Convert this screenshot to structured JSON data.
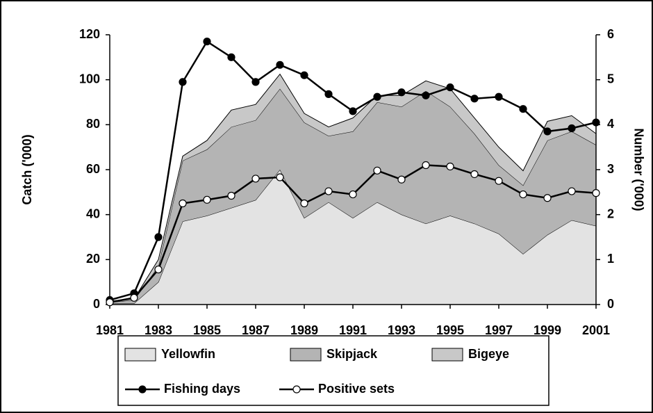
{
  "chart_data": {
    "type": "stacked-area-line",
    "y_label": "Catch ('000)",
    "y2_label": "Number ('000)",
    "x": [
      1981,
      1982,
      1983,
      1984,
      1985,
      1986,
      1987,
      1988,
      1989,
      1990,
      1991,
      1992,
      1993,
      1994,
      1995,
      1996,
      1997,
      1998,
      1999,
      2000,
      2001
    ],
    "xlim": [
      1981,
      2001
    ],
    "xticks": [
      1981,
      1983,
      1985,
      1987,
      1989,
      1991,
      1993,
      1995,
      1997,
      1999,
      2001
    ],
    "ylim": [
      0,
      120
    ],
    "yticks": [
      0,
      20,
      40,
      60,
      80,
      100,
      120
    ],
    "y2lim": [
      0,
      6
    ],
    "y2ticks": [
      0,
      1,
      2,
      3,
      4,
      5,
      6
    ],
    "grid": false,
    "series": [
      {
        "name": "Yellowfin",
        "kind": "area",
        "color": "#e3e3e3",
        "values": [
          0.5,
          0.5,
          10,
          37,
          39.5,
          43,
          46.5,
          60,
          38.5,
          45.5,
          38.5,
          45.5,
          40,
          36,
          39.5,
          36,
          31.5,
          22.5,
          31,
          37.5,
          35
        ]
      },
      {
        "name": "Skipjack",
        "kind": "area",
        "color": "#b4b4b4",
        "values": [
          0.5,
          1.5,
          7,
          27,
          29.5,
          36,
          35.5,
          36,
          42.5,
          29.5,
          38.5,
          44.5,
          48,
          59,
          48.5,
          40,
          30.5,
          30.5,
          42,
          39.5,
          36
        ]
      },
      {
        "name": "Bigeye",
        "kind": "area",
        "color": "#c8c8c8",
        "values": [
          0.5,
          0.5,
          3,
          2,
          4,
          7.5,
          7,
          6.5,
          4,
          4,
          6,
          3,
          5,
          4.5,
          8,
          7,
          8,
          6.5,
          8.5,
          7,
          5
        ]
      },
      {
        "name": "Fishing days",
        "kind": "line",
        "axis": "y2",
        "color": "#000000",
        "marker_fill": "#000000",
        "values": [
          0.1,
          0.25,
          1.5,
          4.95,
          5.85,
          5.5,
          4.95,
          5.33,
          5.1,
          4.68,
          4.3,
          4.62,
          4.72,
          4.65,
          4.83,
          4.58,
          4.62,
          4.35,
          3.85,
          3.92,
          4.05
        ]
      },
      {
        "name": "Positive sets",
        "kind": "line",
        "axis": "y2",
        "color": "#000000",
        "marker_fill": "#ffffff",
        "values": [
          0.05,
          0.15,
          0.78,
          2.25,
          2.33,
          2.42,
          2.8,
          2.83,
          2.25,
          2.52,
          2.45,
          2.98,
          2.78,
          3.1,
          3.07,
          2.9,
          2.75,
          2.45,
          2.37,
          2.52,
          2.48
        ]
      }
    ]
  }
}
